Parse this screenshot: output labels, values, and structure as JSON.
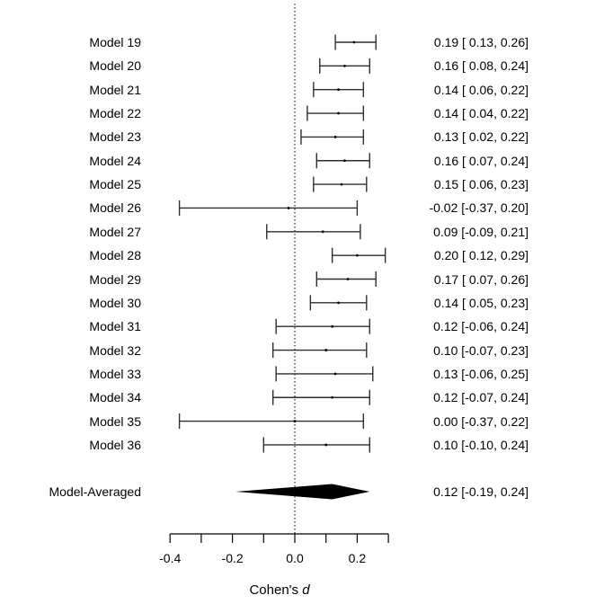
{
  "chart_data": {
    "type": "forest",
    "title": "",
    "xlabel": "Cohen's d",
    "xlabel_prefix": "Cohen's ",
    "xlabel_emphasis": "d",
    "x_axis": {
      "range": [
        -0.4,
        0.3
      ],
      "reference_line": 0.0,
      "ticks": [
        {
          "value": -0.4,
          "label": "-0.4"
        },
        {
          "value": -0.3,
          "label": ""
        },
        {
          "value": -0.2,
          "label": "-0.2"
        },
        {
          "value": -0.1,
          "label": ""
        },
        {
          "value": 0.0,
          "label": "0.0"
        },
        {
          "value": 0.1,
          "label": ""
        },
        {
          "value": 0.2,
          "label": "0.2"
        },
        {
          "value": 0.3,
          "label": ""
        }
      ]
    },
    "rows": [
      {
        "label": "Model 19",
        "estimate": 0.19,
        "ci_lower": 0.13,
        "ci_upper": 0.26,
        "annotation": "0.19 [ 0.13, 0.26]"
      },
      {
        "label": "Model 20",
        "estimate": 0.16,
        "ci_lower": 0.08,
        "ci_upper": 0.24,
        "annotation": "0.16 [ 0.08, 0.24]"
      },
      {
        "label": "Model 21",
        "estimate": 0.14,
        "ci_lower": 0.06,
        "ci_upper": 0.22,
        "annotation": "0.14 [ 0.06, 0.22]"
      },
      {
        "label": "Model 22",
        "estimate": 0.14,
        "ci_lower": 0.04,
        "ci_upper": 0.22,
        "annotation": "0.14 [ 0.04, 0.22]"
      },
      {
        "label": "Model 23",
        "estimate": 0.13,
        "ci_lower": 0.02,
        "ci_upper": 0.22,
        "annotation": "0.13 [ 0.02, 0.22]"
      },
      {
        "label": "Model 24",
        "estimate": 0.16,
        "ci_lower": 0.07,
        "ci_upper": 0.24,
        "annotation": "0.16 [ 0.07, 0.24]"
      },
      {
        "label": "Model 25",
        "estimate": 0.15,
        "ci_lower": 0.06,
        "ci_upper": 0.23,
        "annotation": "0.15 [ 0.06, 0.23]"
      },
      {
        "label": "Model 26",
        "estimate": -0.02,
        "ci_lower": -0.37,
        "ci_upper": 0.2,
        "annotation": "-0.02 [-0.37, 0.20]"
      },
      {
        "label": "Model 27",
        "estimate": 0.09,
        "ci_lower": -0.09,
        "ci_upper": 0.21,
        "annotation": "0.09 [-0.09, 0.21]"
      },
      {
        "label": "Model 28",
        "estimate": 0.2,
        "ci_lower": 0.12,
        "ci_upper": 0.29,
        "annotation": "0.20 [ 0.12, 0.29]"
      },
      {
        "label": "Model 29",
        "estimate": 0.17,
        "ci_lower": 0.07,
        "ci_upper": 0.26,
        "annotation": "0.17 [ 0.07, 0.26]"
      },
      {
        "label": "Model 30",
        "estimate": 0.14,
        "ci_lower": 0.05,
        "ci_upper": 0.23,
        "annotation": "0.14 [ 0.05, 0.23]"
      },
      {
        "label": "Model 31",
        "estimate": 0.12,
        "ci_lower": -0.06,
        "ci_upper": 0.24,
        "annotation": "0.12 [-0.06, 0.24]"
      },
      {
        "label": "Model 32",
        "estimate": 0.1,
        "ci_lower": -0.07,
        "ci_upper": 0.23,
        "annotation": "0.10 [-0.07, 0.23]"
      },
      {
        "label": "Model 33",
        "estimate": 0.13,
        "ci_lower": -0.06,
        "ci_upper": 0.25,
        "annotation": "0.13 [-0.06, 0.25]"
      },
      {
        "label": "Model 34",
        "estimate": 0.12,
        "ci_lower": -0.07,
        "ci_upper": 0.24,
        "annotation": "0.12 [-0.07, 0.24]"
      },
      {
        "label": "Model 35",
        "estimate": 0.0,
        "ci_lower": -0.37,
        "ci_upper": 0.22,
        "annotation": "0.00 [-0.37, 0.22]"
      },
      {
        "label": "Model 36",
        "estimate": 0.1,
        "ci_lower": -0.1,
        "ci_upper": 0.24,
        "annotation": "0.10 [-0.10, 0.24]"
      }
    ],
    "summary": {
      "label": "Model-Averaged",
      "estimate": 0.12,
      "ci_lower": -0.19,
      "ci_upper": 0.24,
      "annotation": "0.12 [-0.19, 0.24]"
    },
    "colors": {
      "line": "#2e2e2e",
      "axis": "#000000",
      "text": "#000000",
      "diamond": "#000000",
      "background": "#ffffff"
    }
  }
}
